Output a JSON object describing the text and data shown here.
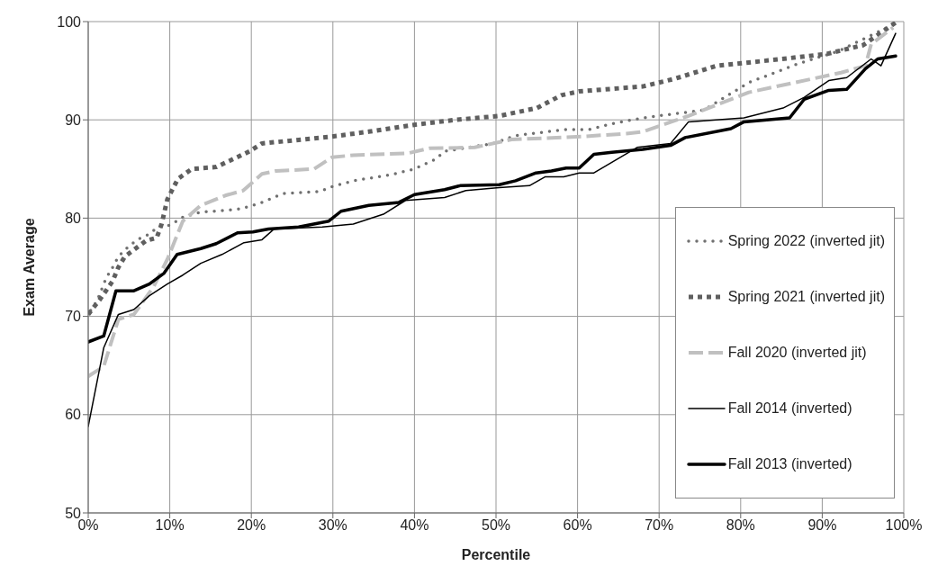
{
  "chart_data": {
    "type": "line",
    "xlabel": "Percentile",
    "ylabel": "Exam Average",
    "xlim": [
      0,
      100
    ],
    "xticks": [
      {
        "value": 0,
        "label": "0%"
      },
      {
        "value": 10,
        "label": "10%"
      },
      {
        "value": 20,
        "label": "20%"
      },
      {
        "value": 30,
        "label": "30%"
      },
      {
        "value": 40,
        "label": "40%"
      },
      {
        "value": 50,
        "label": "50%"
      },
      {
        "value": 60,
        "label": "60%"
      },
      {
        "value": 70,
        "label": "70%"
      },
      {
        "value": 80,
        "label": "80%"
      },
      {
        "value": 90,
        "label": "90%"
      },
      {
        "value": 100,
        "label": "100%"
      }
    ],
    "ylim": [
      50,
      100
    ],
    "yticks": [
      50,
      60,
      70,
      80,
      90,
      100
    ],
    "grid": true,
    "legend": "bottom right",
    "marker": "none",
    "series": [
      {
        "name": "Spring 2022 (inverted jit)",
        "color": "#707070",
        "line_style": "dotted",
        "x": [
          0.3,
          1.1,
          2.2,
          3,
          3.7,
          4.8,
          6,
          7.3,
          8.6,
          10.1,
          11.6,
          13.8,
          18.3,
          19.8,
          21.3,
          23.9,
          28.4,
          29.9,
          32.5,
          37,
          40,
          42.6,
          43.7,
          49.7,
          52.4,
          58.3,
          61.3,
          64.2,
          68,
          75.5,
          81,
          87,
          92,
          98.7
        ],
        "values": [
          70.6,
          71.6,
          73.9,
          75,
          76.1,
          77,
          77.8,
          78.3,
          79.1,
          79.3,
          80.1,
          80.6,
          80.9,
          81.2,
          81.6,
          82.5,
          82.7,
          83.2,
          83.8,
          84.4,
          85,
          86,
          86.8,
          87.6,
          88.4,
          89,
          89,
          89.6,
          90.2,
          91,
          93.8,
          95.7,
          97,
          99.7
        ]
      },
      {
        "name": "Spring 2021 (inverted jit)",
        "color": "#5f5f5f",
        "line_style": "dotted",
        "x": [
          0,
          1.5,
          3,
          3.7,
          4.5,
          5.8,
          7.1,
          8.4,
          9,
          9.7,
          11,
          12.7,
          15.7,
          19.8,
          21.3,
          25,
          29.9,
          34.4,
          40,
          45,
          50.4,
          55,
          58,
          60.2,
          68,
          72,
          77,
          84,
          90.5,
          95,
          99
        ],
        "values": [
          70.2,
          71.8,
          73.6,
          75,
          76.1,
          76.9,
          77.7,
          78,
          79.4,
          81.9,
          84,
          85,
          85.2,
          86.8,
          87.6,
          87.9,
          88.3,
          88.8,
          89.5,
          90,
          90.4,
          91.2,
          92.5,
          92.9,
          93.4,
          94.2,
          95.5,
          96.1,
          96.7,
          97.6,
          99.9
        ]
      },
      {
        "name": "Fall 2020 (inverted jit)",
        "color": "#c0c0c0",
        "line_style": "dashed",
        "x": [
          0,
          1.9,
          3.7,
          5.6,
          8,
          9.7,
          11.6,
          13.8,
          16.8,
          19,
          21.3,
          23,
          27.7,
          29.9,
          32.5,
          39.2,
          41.8,
          47.4,
          51.9,
          60.5,
          66,
          68,
          73.6,
          81,
          92.3,
          95.3,
          96,
          98.7
        ],
        "values": [
          63.9,
          64.9,
          69.7,
          70.2,
          73,
          75.8,
          79.7,
          81.3,
          82.3,
          82.8,
          84.5,
          84.8,
          85,
          86.2,
          86.4,
          86.6,
          87.1,
          87.2,
          88,
          88.3,
          88.6,
          88.8,
          90.4,
          92.8,
          94.8,
          95.5,
          97.7,
          99.4
        ]
      },
      {
        "name": "Fall 2014 (inverted)",
        "color": "#000000",
        "line_style": "solid",
        "x": [
          0,
          1.9,
          3.7,
          5.6,
          7.5,
          9.7,
          11.6,
          13.8,
          16.4,
          19.1,
          21.3,
          22.8,
          28.7,
          32.5,
          36.2,
          38.9,
          43.7,
          46.3,
          50.4,
          54.1,
          56,
          58.3,
          60.2,
          62,
          67.3,
          71.4,
          73.6,
          80.4,
          85.2,
          87.8,
          90.8,
          93,
          96,
          97.2,
          99
        ],
        "values": [
          58.8,
          66.8,
          70.2,
          70.7,
          72.1,
          73.3,
          74.2,
          75.4,
          76.3,
          77.5,
          77.8,
          78.9,
          79.1,
          79.4,
          80.4,
          81.8,
          82.1,
          82.8,
          83.1,
          83.3,
          84.2,
          84.2,
          84.6,
          84.6,
          87.2,
          87.6,
          89.8,
          90.2,
          91.2,
          92.3,
          94,
          94.3,
          96.2,
          95.5,
          98.8
        ]
      },
      {
        "name": "Fall 2013 (inverted)",
        "color": "#000000",
        "line_style": "solid",
        "x": [
          0,
          1.9,
          3.4,
          5.6,
          7.5,
          9.3,
          10.9,
          13.8,
          15.7,
          18.3,
          20.2,
          22.1,
          25.8,
          29.5,
          31,
          34.4,
          38.1,
          40,
          43.7,
          45.6,
          50.4,
          52.4,
          54.9,
          56.8,
          58.6,
          60.2,
          62,
          64.2,
          68,
          71.4,
          73.2,
          78.8,
          80.4,
          86,
          87.8,
          90.8,
          93,
          95.3,
          96.8,
          99
        ],
        "values": [
          67.4,
          68,
          72.6,
          72.6,
          73.3,
          74.4,
          76.3,
          76.9,
          77.4,
          78.5,
          78.6,
          78.9,
          79.1,
          79.7,
          80.7,
          81.3,
          81.6,
          82.4,
          82.9,
          83.3,
          83.4,
          83.8,
          84.6,
          84.8,
          85.1,
          85.1,
          86.5,
          86.7,
          87,
          87.4,
          88.2,
          89.1,
          89.8,
          90.2,
          92.1,
          93,
          93.1,
          95.2,
          96.2,
          96.5
        ]
      }
    ]
  }
}
